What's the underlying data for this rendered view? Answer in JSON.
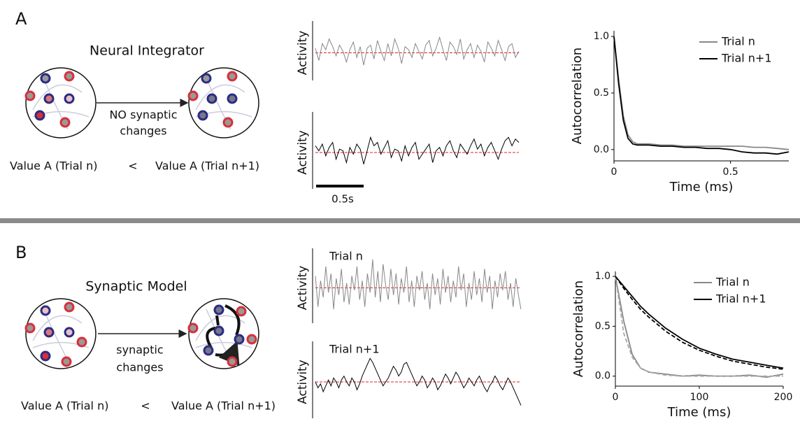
{
  "panels": [
    {
      "label": "A",
      "model_title": "Neural Integrator",
      "arrow_text": [
        "NO synaptic",
        "changes"
      ],
      "comparison": {
        "left": "Value A (Trial n)",
        "op": "<",
        "right": "Value A (Trial n+1)"
      },
      "scale_bar": "0.5s"
    },
    {
      "label": "B",
      "model_title": "Synaptic Model",
      "arrow_text": [
        "synaptic",
        "changes"
      ],
      "comparison": {
        "left": "Value A (Trial n)",
        "op": "<",
        "right": "Value A (Trial n+1)"
      }
    }
  ],
  "chart_data": [
    {
      "type": "trace",
      "ylabel": "Activity",
      "color": "#888888",
      "mean": 0,
      "mean_color": "#e02020",
      "values": [
        0.3,
        -0.5,
        0.6,
        0.2,
        0.9,
        0.4,
        -0.2,
        0.5,
        0.1,
        -0.6,
        0.2,
        0.7,
        -0.3,
        0.4,
        -0.8,
        0.3,
        0.5,
        -0.4,
        0.8,
        0.1,
        -0.5,
        0.6,
        -0.2,
        0.9,
        0.3,
        -0.7,
        0.4,
        0.2,
        -0.3,
        0.6,
        0.1,
        -0.4,
        0.5,
        0.8,
        -0.2,
        0.3,
        1.0,
        0.2,
        -0.5,
        0.7,
        0.4,
        -0.1,
        0.9,
        -0.4,
        0.2,
        0.6,
        -0.3,
        0.5,
        0.1,
        -0.6,
        0.7,
        0.3,
        -0.2,
        0.8,
        0.2,
        -0.5,
        0.4,
        0.6,
        -0.3,
        0.1
      ]
    },
    {
      "type": "trace",
      "ylabel": "Activity",
      "color": "#000000",
      "mean": 0,
      "mean_color": "#e02020",
      "values": [
        0.4,
        0.1,
        0.5,
        -0.2,
        0.3,
        0.6,
        -0.4,
        0.2,
        0.1,
        -0.6,
        0.3,
        -0.1,
        0.5,
        0.2,
        -0.7,
        0.1,
        0.9,
        0.4,
        0.6,
        -0.1,
        0.3,
        0.7,
        -0.3,
        0.2,
        0.1,
        -0.5,
        0.4,
        -0.2,
        0.3,
        0.6,
        -0.4,
        -0.1,
        0.2,
        0.5,
        -0.6,
        0.1,
        0.3,
        -0.2,
        0.4,
        0.7,
        0.1,
        -0.3,
        0.5,
        0.2,
        -0.1,
        0.4,
        0.8,
        0.2,
        0.5,
        -0.2,
        0.3,
        0.6,
        0.1,
        -0.4,
        0.2,
        0.7,
        0.9,
        0.4,
        0.8,
        0.6
      ]
    },
    {
      "type": "line",
      "xlabel": "Time (ms)",
      "ylabel": "Autocorrelation",
      "xlim": [
        0,
        0.75
      ],
      "ylim": [
        -0.1,
        1.05
      ],
      "xticks": [
        0,
        0.5
      ],
      "yticks": [
        {
          "value": 0,
          "label": "0.0"
        },
        0.5,
        {
          "value": 1,
          "label": "1.0"
        }
      ],
      "x": [
        0,
        0.02,
        0.04,
        0.06,
        0.08,
        0.1,
        0.15,
        0.2,
        0.25,
        0.3,
        0.35,
        0.4,
        0.45,
        0.5,
        0.55,
        0.6,
        0.65,
        0.7,
        0.75
      ],
      "series": [
        {
          "name": "Trial n",
          "color": "#888888",
          "values": [
            1.0,
            0.62,
            0.3,
            0.13,
            0.07,
            0.05,
            0.05,
            0.04,
            0.04,
            0.03,
            0.03,
            0.03,
            0.03,
            0.03,
            0.03,
            0.02,
            0.02,
            0.01,
            0.0
          ]
        },
        {
          "name": "Trial n+1",
          "color": "#000000",
          "values": [
            1.0,
            0.58,
            0.26,
            0.1,
            0.05,
            0.04,
            0.04,
            0.03,
            0.03,
            0.02,
            0.02,
            0.01,
            0.01,
            0.0,
            -0.02,
            -0.03,
            -0.03,
            -0.04,
            -0.02
          ]
        }
      ]
    },
    {
      "type": "trace",
      "title": "Trial n",
      "ylabel": "Activity",
      "color": "#888888",
      "mean": 0,
      "mean_color": "#e02020",
      "values": [
        0.5,
        -0.8,
        0.3,
        -0.4,
        0.9,
        -0.2,
        0.6,
        -0.9,
        0.4,
        -0.3,
        0.8,
        -0.6,
        0.2,
        -0.7,
        0.5,
        -0.1,
        0.9,
        -0.5,
        0.3,
        -0.8,
        0.6,
        -0.2,
        1.2,
        -0.4,
        0.7,
        -0.6,
        1.0,
        0.1,
        -0.5,
        0.8,
        -0.3,
        0.6,
        -0.7,
        0.4,
        -0.2,
        0.9,
        -0.6,
        0.3,
        -0.8,
        0.5,
        -0.1,
        0.7,
        -0.5,
        0.2,
        -0.9,
        0.6,
        -0.3,
        0.4,
        -0.7,
        0.8,
        -0.2,
        0.5,
        -0.6,
        0.3,
        -0.4,
        0.9,
        -0.1,
        0.6,
        -0.8,
        0.2,
        -0.5,
        0.7,
        -0.3,
        0.4,
        -0.6,
        0.8,
        -0.2,
        0.5,
        -0.9,
        0.3,
        -0.4,
        0.6,
        -0.1,
        0.7,
        -0.5,
        0.2,
        -0.8,
        0.4,
        -0.3,
        -0.9
      ]
    },
    {
      "type": "trace",
      "title": "Trial n+1",
      "ylabel": "Activity",
      "color": "#000000",
      "mean": 0,
      "mean_color": "#e02020",
      "values": [
        0.0,
        -0.3,
        -0.1,
        -0.5,
        -0.2,
        0.1,
        -0.2,
        0.2,
        0.0,
        -0.3,
        0.1,
        0.3,
        0.0,
        -0.2,
        0.2,
        0.0,
        -0.4,
        -0.1,
        0.3,
        0.6,
        0.9,
        1.2,
        1.0,
        0.7,
        0.4,
        0.1,
        -0.2,
        0.0,
        0.2,
        0.5,
        0.8,
        0.6,
        0.3,
        0.5,
        0.9,
        1.0,
        0.7,
        0.4,
        0.1,
        -0.2,
        0.0,
        0.3,
        0.1,
        -0.3,
        -0.1,
        0.2,
        0.0,
        -0.4,
        -0.2,
        0.1,
        0.4,
        0.2,
        -0.1,
        0.2,
        0.5,
        0.3,
        0.0,
        -0.3,
        -0.1,
        0.2,
        0.0,
        -0.2,
        0.1,
        0.3,
        0.0,
        -0.3,
        -0.5,
        -0.2,
        0.0,
        0.3,
        0.1,
        -0.2,
        -0.4,
        -0.1,
        0.2,
        0.0,
        -0.3,
        -0.6,
        -0.9,
        -1.2
      ]
    },
    {
      "type": "line",
      "xlabel": "Time (ms)",
      "ylabel": "Autocorrelation",
      "xlim": [
        0,
        200
      ],
      "ylim": [
        -0.1,
        1.05
      ],
      "xticks": [
        0,
        100,
        200
      ],
      "yticks": [
        {
          "value": 0,
          "label": "0.0"
        },
        0.5,
        {
          "value": 1,
          "label": "1.0"
        }
      ],
      "x": [
        0,
        10,
        20,
        30,
        40,
        60,
        80,
        100,
        120,
        140,
        160,
        180,
        200
      ],
      "series": [
        {
          "name": "Trial n",
          "color": "#888888",
          "values": [
            1.0,
            0.55,
            0.22,
            0.08,
            0.04,
            0.02,
            0.0,
            0.01,
            0.0,
            0.0,
            0.01,
            -0.01,
            0.02
          ]
        },
        {
          "name": "Trial n+1",
          "color": "#000000",
          "values": [
            1.0,
            0.9,
            0.8,
            0.7,
            0.62,
            0.48,
            0.37,
            0.28,
            0.22,
            0.17,
            0.14,
            0.11,
            0.08
          ]
        },
        {
          "color": "#aaaaaa",
          "dashed": true,
          "values": [
            1.0,
            0.43,
            0.19,
            0.08,
            0.04,
            0.01,
            0.0,
            0.0,
            0.0,
            0.0,
            0.0,
            0.0,
            0.0
          ]
        },
        {
          "color": "#000000",
          "dashed": true,
          "values": [
            1.0,
            0.88,
            0.77,
            0.67,
            0.59,
            0.45,
            0.34,
            0.26,
            0.2,
            0.15,
            0.12,
            0.09,
            0.07
          ]
        }
      ]
    }
  ]
}
